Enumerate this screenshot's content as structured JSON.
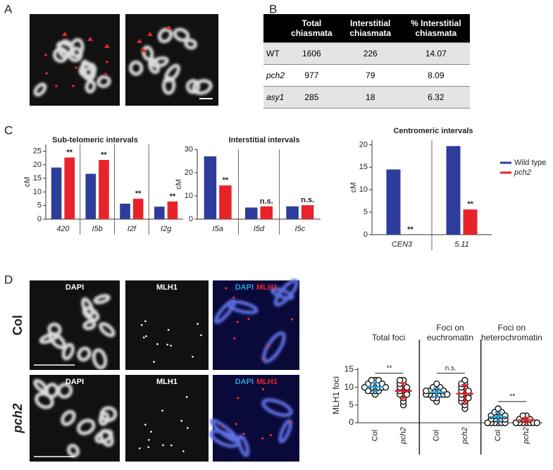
{
  "panel_labels": [
    "A",
    "B",
    "C",
    "D"
  ],
  "table": {
    "header": [
      "Total chiasmata",
      "Interstitial chiasmata",
      "% Interstitial chiasmata"
    ],
    "rows": [
      [
        "WT",
        "1606",
        "226",
        "14.07"
      ],
      [
        "pch2",
        "977",
        "79",
        "8.09"
      ],
      [
        "asy1",
        "285",
        "18",
        "6.32"
      ]
    ]
  },
  "images": {
    "channels": [
      "DAPI",
      "MLH1"
    ],
    "rows": [
      "Col",
      "pch2"
    ]
  },
  "chart_data": [
    {
      "type": "bar",
      "title": "Sub-telomeric intervals",
      "y_label": "cM",
      "categories": [
        "420",
        "I5b",
        "I2f",
        "I2g"
      ],
      "series": [
        {
          "color": "#2e3c9c",
          "values": [
            19,
            16.7,
            5.7,
            4.6
          ]
        },
        {
          "color": "#e8242a",
          "values": [
            22.7,
            21.8,
            7.5,
            6.5
          ]
        }
      ],
      "annotations": [
        "**",
        "**",
        "**",
        "**"
      ],
      "ylim": [
        0,
        27.5
      ],
      "yticks": [
        0,
        5,
        10,
        15,
        20,
        25
      ]
    },
    {
      "type": "bar",
      "title": "Interstitial intervals",
      "y_label": "cM",
      "categories": [
        "I5a",
        "I5d",
        "I5c"
      ],
      "series": [
        {
          "color": "#2e3c9c",
          "values": [
            27,
            5,
            5.5
          ]
        },
        {
          "color": "#e8242a",
          "values": [
            14.5,
            5.5,
            6
          ]
        }
      ],
      "annotations": [
        "**",
        "n.s.",
        "n.s."
      ],
      "ylim": [
        0,
        30
      ],
      "yticks": [
        0,
        10,
        20,
        30
      ]
    },
    {
      "type": "bar",
      "title": "Centromeric intervals",
      "y_label": "cM",
      "categories": [
        "CEN3",
        "5.11"
      ],
      "series": [
        {
          "name": "Wild type",
          "color": "#2e3c9c",
          "values": [
            14.5,
            19.7
          ]
        },
        {
          "name": "pch2",
          "color": "#e8242a",
          "values": [
            0,
            5.6
          ]
        }
      ],
      "annotations": [
        "**",
        "**"
      ],
      "ylim": [
        0,
        21
      ],
      "yticks": [
        0,
        5,
        10,
        15,
        20
      ],
      "legend": "right"
    },
    {
      "type": "dot",
      "y_label": "MLH1 foci",
      "groups": [
        "Total foci",
        "Foci on euchromatin",
        "Foci on heterochromatin"
      ],
      "categories": [
        "Col",
        "pch2",
        "Col",
        "pch2",
        "Col",
        "pch2"
      ],
      "colors": [
        "#2a9fd6",
        "#e8242a",
        "#2a9fd6",
        "#e8242a",
        "#2a9fd6",
        "#e8242a"
      ],
      "points": [
        [
          8,
          9,
          9,
          9,
          10,
          10,
          10,
          10,
          10,
          11,
          11,
          11,
          11,
          12,
          12,
          12,
          9,
          10,
          11,
          10
        ],
        [
          5,
          6,
          7,
          8,
          8,
          9,
          9,
          9,
          10,
          10,
          11,
          11,
          12,
          12,
          8,
          10
        ],
        [
          6,
          7,
          7,
          8,
          8,
          8,
          8,
          9,
          9,
          9,
          9,
          10,
          10,
          10,
          11,
          8,
          9,
          8,
          9,
          8
        ],
        [
          4,
          5,
          6,
          6,
          7,
          7,
          8,
          8,
          9,
          9,
          10,
          10,
          11,
          11,
          12,
          8,
          9,
          7
        ],
        [
          0,
          0,
          0,
          0,
          0,
          1,
          1,
          1,
          1,
          2,
          2,
          2,
          2,
          3,
          3,
          3,
          4,
          1,
          2,
          0
        ],
        [
          0,
          0,
          0,
          0,
          0,
          0,
          1,
          1,
          1,
          1,
          2,
          2,
          0
        ]
      ],
      "means": [
        10.1,
        9,
        8.6,
        8.2,
        1.7,
        0.8
      ],
      "sd": [
        1.2,
        2.2,
        1.2,
        2.5,
        1.2,
        0.7
      ],
      "annotations": [
        "**",
        "n.s.",
        "**"
      ],
      "ylim": [
        0,
        15.5
      ],
      "yticks": [
        0,
        5,
        10,
        15
      ]
    }
  ]
}
